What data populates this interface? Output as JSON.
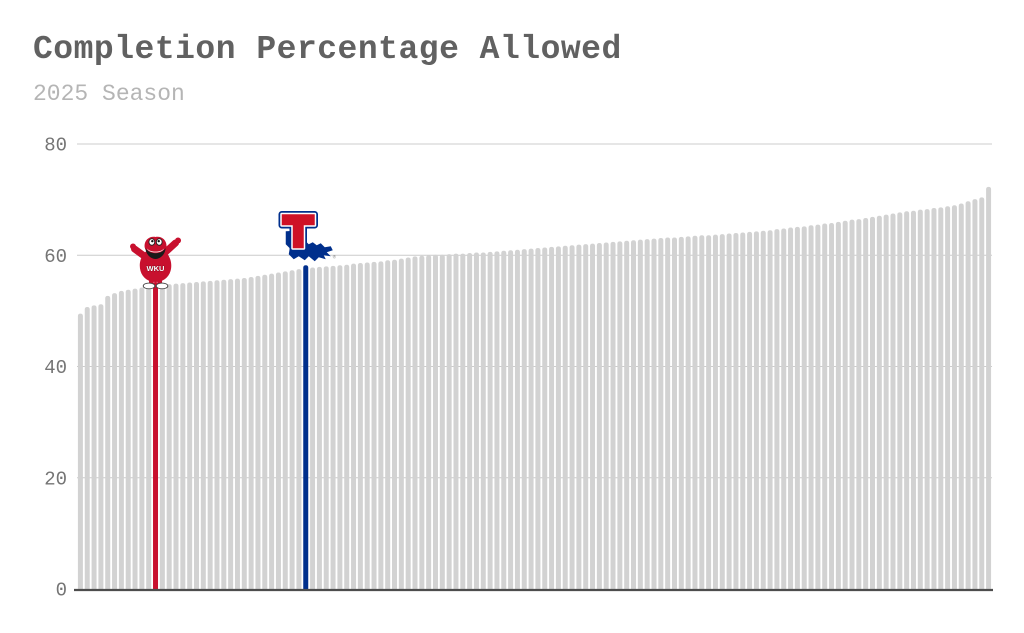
{
  "header": {
    "title": "Completion Percentage Allowed",
    "subtitle": "2025 Season"
  },
  "chart_data": {
    "type": "bar",
    "title": "Completion Percentage Allowed",
    "subtitle": "2025 Season",
    "xlabel": "",
    "ylabel": "",
    "ylim": [
      0,
      80
    ],
    "yticks": [
      0,
      20,
      40,
      60,
      80
    ],
    "grid": "horizontal",
    "legend": "none",
    "bar_color": "#d2d2d2",
    "grid_color": "#cccccc",
    "axis_line_color": "#4d4d4d",
    "tick_label_color": "#757575",
    "values": [
      49.5,
      50.7,
      51.0,
      51.2,
      52.7,
      53.2,
      53.6,
      53.8,
      54.0,
      54.2,
      54.4,
      55.2,
      54.7,
      54.8,
      54.9,
      55.0,
      55.1,
      55.2,
      55.3,
      55.4,
      55.5,
      55.6,
      55.7,
      55.8,
      55.9,
      56.1,
      56.3,
      56.5,
      56.7,
      56.9,
      57.1,
      57.3,
      57.5,
      58.2,
      57.8,
      57.9,
      58.0,
      58.1,
      58.2,
      58.3,
      58.5,
      58.6,
      58.7,
      58.8,
      58.9,
      59.1,
      59.2,
      59.4,
      59.6,
      59.8,
      59.9,
      60.0,
      60.1,
      60.1,
      60.2,
      60.3,
      60.3,
      60.4,
      60.5,
      60.5,
      60.6,
      60.7,
      60.8,
      60.9,
      61.0,
      61.1,
      61.2,
      61.3,
      61.4,
      61.5,
      61.6,
      61.7,
      61.8,
      61.9,
      62.0,
      62.1,
      62.2,
      62.3,
      62.4,
      62.5,
      62.6,
      62.7,
      62.8,
      62.9,
      63.0,
      63.1,
      63.2,
      63.2,
      63.3,
      63.4,
      63.5,
      63.6,
      63.6,
      63.7,
      63.8,
      63.9,
      64.0,
      64.1,
      64.2,
      64.3,
      64.4,
      64.5,
      64.7,
      64.8,
      65.0,
      65.1,
      65.2,
      65.4,
      65.5,
      65.7,
      65.8,
      66.0,
      66.2,
      66.4,
      66.5,
      66.7,
      66.9,
      67.1,
      67.3,
      67.5,
      67.7,
      67.9,
      68.0,
      68.2,
      68.3,
      68.5,
      68.6,
      68.8,
      69.0,
      69.3,
      69.7,
      70.1,
      70.4,
      72.3
    ],
    "highlights": [
      {
        "index": 11,
        "label": "WKU",
        "value": 55.2,
        "color": "#C8102E",
        "logo": "wku-big-red-mascot"
      },
      {
        "index": 33,
        "label": "Louisiana Tech",
        "value": 58.2,
        "color": "#002F8C",
        "logo": "louisiana-tech"
      }
    ],
    "logo_labels": {
      "wku_chest_text": "WKU",
      "latech_registered_mark": "®"
    }
  }
}
